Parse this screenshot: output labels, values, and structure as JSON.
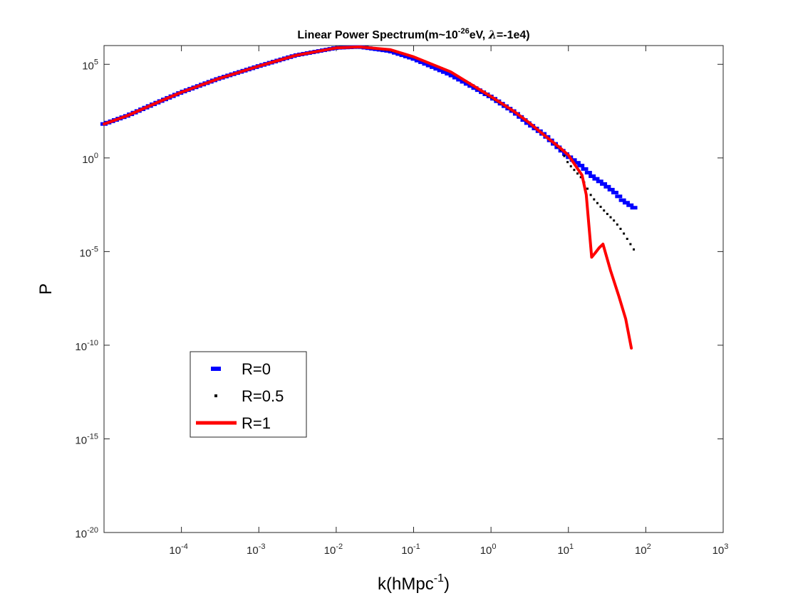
{
  "chart_data": {
    "type": "line",
    "title": {
      "text_before": "Linear Power Spectrum(m~10",
      "text_exponent": "-26",
      "text_after": "eV, ",
      "symbol": "λ",
      "text_end": "=-1e4)"
    },
    "xlabel": {
      "base": "k(hMpc",
      "exponent": "-1",
      "suffix": ")"
    },
    "ylabel": "P",
    "x_scale": "log",
    "y_scale": "log",
    "xlim": [
      1e-05,
      1000
    ],
    "ylim": [
      1e-20,
      1000000.0
    ],
    "x_ticks": [
      {
        "value": 0.0001,
        "base": "10",
        "exp": "-4"
      },
      {
        "value": 0.001,
        "base": "10",
        "exp": "-3"
      },
      {
        "value": 0.01,
        "base": "10",
        "exp": "-2"
      },
      {
        "value": 0.1,
        "base": "10",
        "exp": "-1"
      },
      {
        "value": 1,
        "base": "10",
        "exp": "0"
      },
      {
        "value": 10,
        "base": "10",
        "exp": "1"
      },
      {
        "value": 100,
        "base": "10",
        "exp": "2"
      },
      {
        "value": 1000,
        "base": "10",
        "exp": "3"
      }
    ],
    "y_ticks": [
      {
        "value": 100000.0,
        "base": "10",
        "exp": "5"
      },
      {
        "value": 1,
        "base": "10",
        "exp": "0"
      },
      {
        "value": 1e-05,
        "base": "10",
        "exp": "-5"
      },
      {
        "value": 1e-10,
        "base": "10",
        "exp": "-10"
      },
      {
        "value": 1e-15,
        "base": "10",
        "exp": "-15"
      },
      {
        "value": 1e-20,
        "base": "10",
        "exp": "-20"
      }
    ],
    "grid": false,
    "legend_position": "lower-left",
    "series": [
      {
        "name": "R=0",
        "color": "#0000ff",
        "marker": "dash",
        "x": [
          1e-05,
          2e-05,
          5e-05,
          0.0001,
          0.0003,
          0.001,
          0.003,
          0.01,
          0.02,
          0.05,
          0.1,
          0.3,
          1,
          2,
          3,
          5,
          8,
          10,
          15,
          20,
          30,
          40,
          50,
          70
        ],
        "y": [
          65,
          180,
          950,
          3200,
          17000,
          80000,
          300000,
          750000,
          850000,
          500000,
          200000,
          28000,
          1800,
          280,
          72,
          16,
          2.7,
          1.2,
          0.35,
          0.11,
          0.035,
          0.014,
          0.0055,
          0.0022
        ]
      },
      {
        "name": "R=0.5",
        "color": "#000000",
        "marker": "dot",
        "x": [
          1e-05,
          2e-05,
          5e-05,
          0.0001,
          0.0003,
          0.001,
          0.003,
          0.01,
          0.02,
          0.05,
          0.1,
          0.3,
          1,
          2,
          3,
          5,
          8,
          10,
          15,
          20,
          30,
          40,
          50,
          70
        ],
        "y": [
          65,
          180,
          950,
          3200,
          17000,
          80000,
          300000,
          750000,
          850000,
          550000,
          250000,
          40000,
          1700,
          280,
          85,
          15,
          2.7,
          0.5,
          0.08,
          0.0085,
          0.0013,
          0.0004,
          0.00012,
          1.3e-05
        ]
      },
      {
        "name": "R=1",
        "color": "#ff0000",
        "marker": "line",
        "x": [
          1e-05,
          2e-05,
          5e-05,
          0.0001,
          0.0003,
          0.001,
          0.003,
          0.01,
          0.02,
          0.05,
          0.1,
          0.3,
          1,
          2,
          3,
          5,
          8,
          10,
          15,
          17,
          20,
          22,
          25,
          28,
          35,
          45,
          55,
          65
        ],
        "y": [
          65,
          180,
          950,
          3200,
          17000,
          80000,
          300000,
          750000,
          850000,
          600000,
          250000,
          40000,
          1900,
          300,
          85,
          15,
          3.2,
          1.4,
          0.12,
          0.011,
          5e-06,
          8e-06,
          1.6e-05,
          2.5e-05,
          1e-06,
          4e-08,
          2.5e-09,
          7e-11
        ]
      }
    ]
  }
}
